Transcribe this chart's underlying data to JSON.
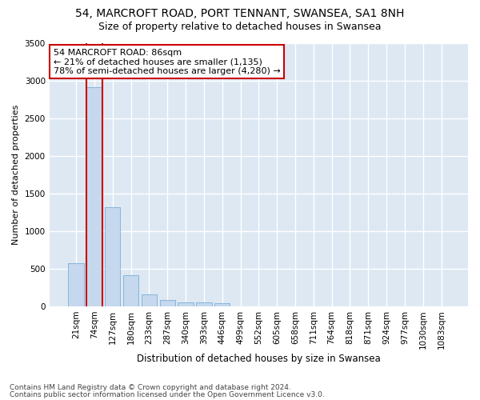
{
  "title1": "54, MARCROFT ROAD, PORT TENNANT, SWANSEA, SA1 8NH",
  "title2": "Size of property relative to detached houses in Swansea",
  "xlabel": "Distribution of detached houses by size in Swansea",
  "ylabel": "Number of detached properties",
  "categories": [
    "21sqm",
    "74sqm",
    "127sqm",
    "180sqm",
    "233sqm",
    "287sqm",
    "340sqm",
    "393sqm",
    "446sqm",
    "499sqm",
    "552sqm",
    "605sqm",
    "658sqm",
    "711sqm",
    "764sqm",
    "818sqm",
    "871sqm",
    "924sqm",
    "977sqm",
    "1030sqm",
    "1083sqm"
  ],
  "values": [
    570,
    2920,
    1320,
    415,
    155,
    80,
    55,
    50,
    45,
    0,
    0,
    0,
    0,
    0,
    0,
    0,
    0,
    0,
    0,
    0,
    0
  ],
  "bar_color": "#c5d8ee",
  "bar_edge_color": "#7aafd4",
  "highlight_bar_index": 1,
  "highlight_line_color": "#cc0000",
  "annotation_text": "54 MARCROFT ROAD: 86sqm\n← 21% of detached houses are smaller (1,135)\n78% of semi-detached houses are larger (4,280) →",
  "annotation_box_color": "#ffffff",
  "annotation_box_edge_color": "#cc0000",
  "ylim": [
    0,
    3500
  ],
  "yticks": [
    0,
    500,
    1000,
    1500,
    2000,
    2500,
    3000,
    3500
  ],
  "background_color": "#dde8f3",
  "grid_color": "#ffffff",
  "footer1": "Contains HM Land Registry data © Crown copyright and database right 2024.",
  "footer2": "Contains public sector information licensed under the Open Government Licence v3.0.",
  "title1_fontsize": 10,
  "title2_fontsize": 9,
  "xlabel_fontsize": 8.5,
  "ylabel_fontsize": 8,
  "tick_fontsize": 7.5,
  "annotation_fontsize": 8,
  "footer_fontsize": 6.5
}
